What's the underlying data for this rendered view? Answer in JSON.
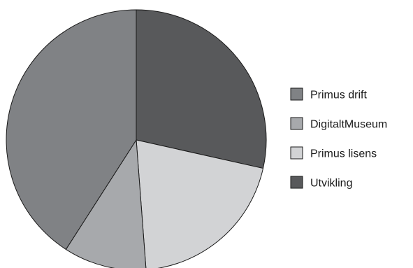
{
  "chart_data": {
    "type": "pie",
    "title": "",
    "start_angle_deg": 0,
    "direction": "clockwise",
    "slices_in_draw_order": [
      {
        "label": "Utvikling",
        "value": 28.5,
        "color": "#58595b"
      },
      {
        "label": "Primus lisens",
        "value": 20.3,
        "color": "#d2d3d5"
      },
      {
        "label": "DigitaltMuseum",
        "value": 10.3,
        "color": "#a7a9ac"
      },
      {
        "label": "Primus drift",
        "value": 40.9,
        "color": "#808285"
      }
    ],
    "legend": {
      "position": "right",
      "entries": [
        {
          "label": "Primus drift",
          "color": "#808285"
        },
        {
          "label": "DigitaltMuseum",
          "color": "#a7a9ac"
        },
        {
          "label": "Primus lisens",
          "color": "#d2d3d5"
        },
        {
          "label": "Utvikling",
          "color": "#58595b"
        }
      ]
    },
    "stroke_color": "#1a1a1a"
  }
}
